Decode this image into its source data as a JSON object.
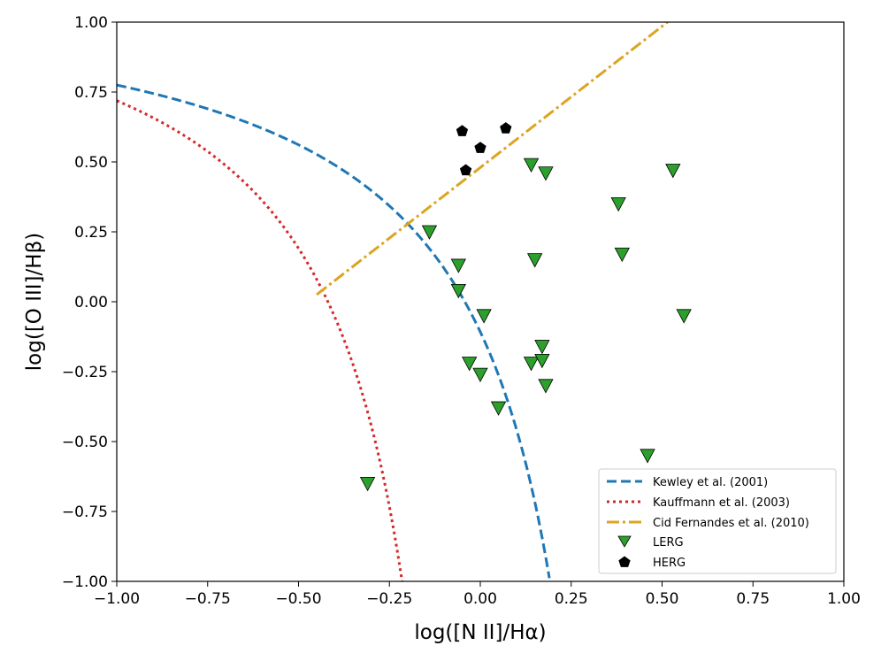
{
  "chart_data": {
    "type": "scatter",
    "title": "",
    "xlabel": "log([N II]/Hα)",
    "ylabel": "log([O III]/Hβ)",
    "xlim": [
      -1.0,
      1.0
    ],
    "ylim": [
      -1.0,
      1.0
    ],
    "xticks": [
      "−1.00",
      "−0.75",
      "−0.50",
      "−0.25",
      "0.00",
      "0.25",
      "0.50",
      "0.75",
      "1.00"
    ],
    "yticks": [
      "−1.00",
      "−0.75",
      "−0.50",
      "−0.25",
      "0.00",
      "0.25",
      "0.50",
      "0.75",
      "1.00"
    ],
    "xtick_values": [
      -1.0,
      -0.75,
      -0.5,
      -0.25,
      0.0,
      0.25,
      0.5,
      0.75,
      1.0
    ],
    "ytick_values": [
      -1.0,
      -0.75,
      -0.5,
      -0.25,
      0.0,
      0.25,
      0.5,
      0.75,
      1.0
    ],
    "grid": false,
    "legend_position": "lower-right",
    "lines": [
      {
        "name": "Kewley et al. (2001)",
        "style": "dashed",
        "color": "#1f77b4",
        "formula": "y = 0.61 / (x - 0.47) + 1.19",
        "x_range": [
          -1.0,
          0.19
        ]
      },
      {
        "name": "Kauffmann et al. (2003)",
        "style": "dotted",
        "color": "#d62728",
        "formula": "y = 0.61 / (x - 0.05) + 1.3",
        "x_range": [
          -1.0,
          -0.21
        ]
      },
      {
        "name": "Cid Fernandes et al. (2010)",
        "style": "dashdot",
        "color": "#daa520",
        "formula": "y = 1.01 * x + 0.48",
        "x_range": [
          -0.45,
          0.52
        ]
      }
    ],
    "series": [
      {
        "name": "LERG",
        "marker": "triangle-down",
        "color": "#2ca02c",
        "x": [
          -0.31,
          -0.14,
          -0.06,
          -0.06,
          -0.03,
          0.0,
          0.01,
          0.05,
          0.14,
          0.14,
          0.15,
          0.17,
          0.17,
          0.18,
          0.18,
          0.38,
          0.39,
          0.46,
          0.53,
          0.56
        ],
        "y": [
          -0.65,
          0.25,
          0.13,
          0.04,
          -0.22,
          -0.26,
          -0.05,
          -0.38,
          0.49,
          -0.22,
          0.15,
          -0.16,
          -0.21,
          -0.3,
          0.46,
          0.35,
          0.17,
          -0.55,
          0.47,
          -0.05
        ]
      },
      {
        "name": "HERG",
        "marker": "pentagon",
        "color": "#000000",
        "x": [
          -0.05,
          -0.04,
          0.0,
          0.07
        ],
        "y": [
          0.61,
          0.47,
          0.55,
          0.62
        ]
      }
    ]
  }
}
